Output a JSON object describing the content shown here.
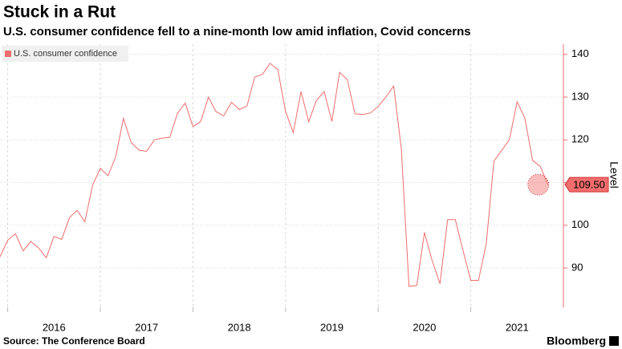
{
  "chart_data": {
    "type": "line",
    "title": "Stuck in a Rut",
    "subtitle": "U.S. consumer confidence fell to a nine-month low amid inflation, Covid concerns",
    "y_axis_label": "Level",
    "source": "Source: The Conference Board",
    "brand": "Bloomberg",
    "legend": "top-left",
    "grid": true,
    "x": [
      2015.917,
      2016.0,
      2016.083,
      2016.167,
      2016.25,
      2016.333,
      2016.417,
      2016.5,
      2016.583,
      2016.667,
      2016.75,
      2016.833,
      2016.917,
      2017.0,
      2017.083,
      2017.167,
      2017.25,
      2017.333,
      2017.417,
      2017.5,
      2017.583,
      2017.667,
      2017.75,
      2017.833,
      2017.917,
      2018.0,
      2018.083,
      2018.167,
      2018.25,
      2018.333,
      2018.417,
      2018.5,
      2018.583,
      2018.667,
      2018.75,
      2018.833,
      2018.917,
      2019.0,
      2019.083,
      2019.167,
      2019.25,
      2019.333,
      2019.417,
      2019.5,
      2019.583,
      2019.667,
      2019.75,
      2019.833,
      2019.917,
      2020.0,
      2020.083,
      2020.167,
      2020.25,
      2020.333,
      2020.417,
      2020.5,
      2020.583,
      2020.667,
      2020.75,
      2020.833,
      2020.917,
      2021.0,
      2021.083,
      2021.167,
      2021.25,
      2021.333,
      2021.417,
      2021.5,
      2021.583,
      2021.667,
      2021.75,
      2021.833
    ],
    "series": [
      {
        "name": "U.S. consumer confidence",
        "color": "#f26d6d",
        "values": [
          92.6,
          96.5,
          98,
          94,
          96.2,
          94.7,
          92.4,
          97.4,
          96.7,
          101.8,
          103.5,
          100.8,
          109.4,
          113.3,
          111.6,
          116.1,
          125,
          119.4,
          117.6,
          117.3,
          120,
          120.4,
          120.6,
          126.2,
          128.6,
          123.1,
          124.3,
          130,
          126.6,
          125.6,
          128.8,
          127.1,
          127.9,
          134.7,
          135.3,
          137.9,
          136.4,
          126.6,
          121.7,
          131.3,
          124.2,
          129.2,
          131.3,
          124.3,
          135.8,
          134.1,
          126.1,
          125.9,
          126.3,
          127.8,
          130,
          132.6,
          118,
          85.7,
          85.9,
          98.3,
          91.7,
          86.3,
          101.3,
          101.3,
          94,
          87.1,
          87.1,
          95.7,
          115,
          117.5,
          120,
          128.9,
          125.1,
          115.2,
          113.8,
          109.5
        ],
        "value_labels": [
          null,
          null,
          null,
          null,
          null,
          null,
          null,
          null,
          null,
          null,
          null,
          null,
          null,
          null,
          null,
          null,
          null,
          null,
          null,
          null,
          null,
          null,
          null,
          null,
          null,
          null,
          null,
          null,
          null,
          null,
          null,
          null,
          null,
          null,
          null,
          null,
          null,
          null,
          null,
          null,
          null,
          null,
          null,
          null,
          null,
          null,
          null,
          null,
          null,
          null,
          null,
          null,
          null,
          null,
          null,
          null,
          null,
          null,
          null,
          null,
          null,
          null,
          null,
          null,
          null,
          null,
          null,
          null,
          null,
          null,
          null,
          "109.50"
        ]
      }
    ],
    "xlim": [
      2015.917,
      2022.0
    ],
    "xticks": [
      {
        "value": 2016,
        "label": "2016"
      },
      {
        "value": 2017,
        "label": "2017"
      },
      {
        "value": 2018,
        "label": "2018"
      },
      {
        "value": 2019,
        "label": "2019"
      },
      {
        "value": 2020,
        "label": "2020"
      },
      {
        "value": 2021,
        "label": "2021"
      }
    ],
    "ylim": [
      80.8,
      142.4
    ],
    "yticks": [
      90,
      100,
      110,
      120,
      130,
      140
    ]
  }
}
